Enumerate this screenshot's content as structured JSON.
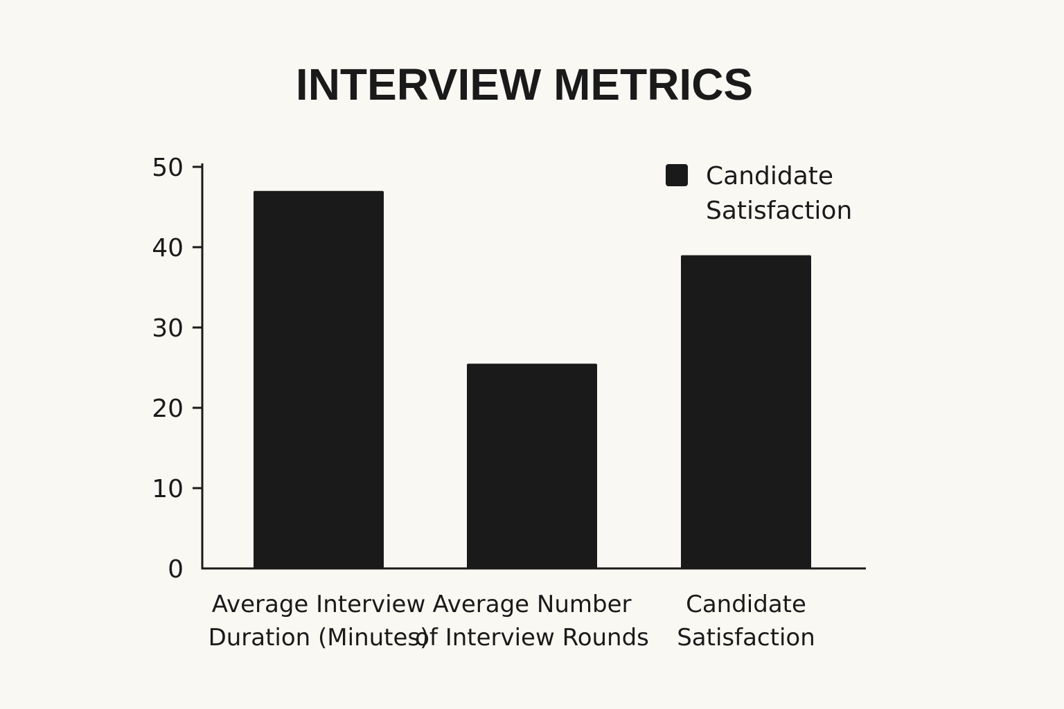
{
  "chart_data": {
    "type": "bar",
    "title": "INTERVIEW METRICS",
    "xlabel": "",
    "ylabel": "",
    "ylim": [
      0,
      50
    ],
    "yticks": [
      0,
      10,
      20,
      30,
      40,
      50
    ],
    "grid": false,
    "legend_position": "top-right",
    "categories": [
      [
        "Average Interview",
        "Duration (Minutes)"
      ],
      [
        "Average Number",
        "of Interview Rounds"
      ],
      [
        "Candidate",
        "Satisfaction"
      ]
    ],
    "series": [
      {
        "name": [
          "Candidate",
          "Satisfaction"
        ],
        "values": [
          47,
          25.5,
          39
        ]
      }
    ],
    "colors": {
      "bar": "#1a1a1a",
      "axis": "#1a1a1a",
      "background": "#faf8f3"
    }
  }
}
